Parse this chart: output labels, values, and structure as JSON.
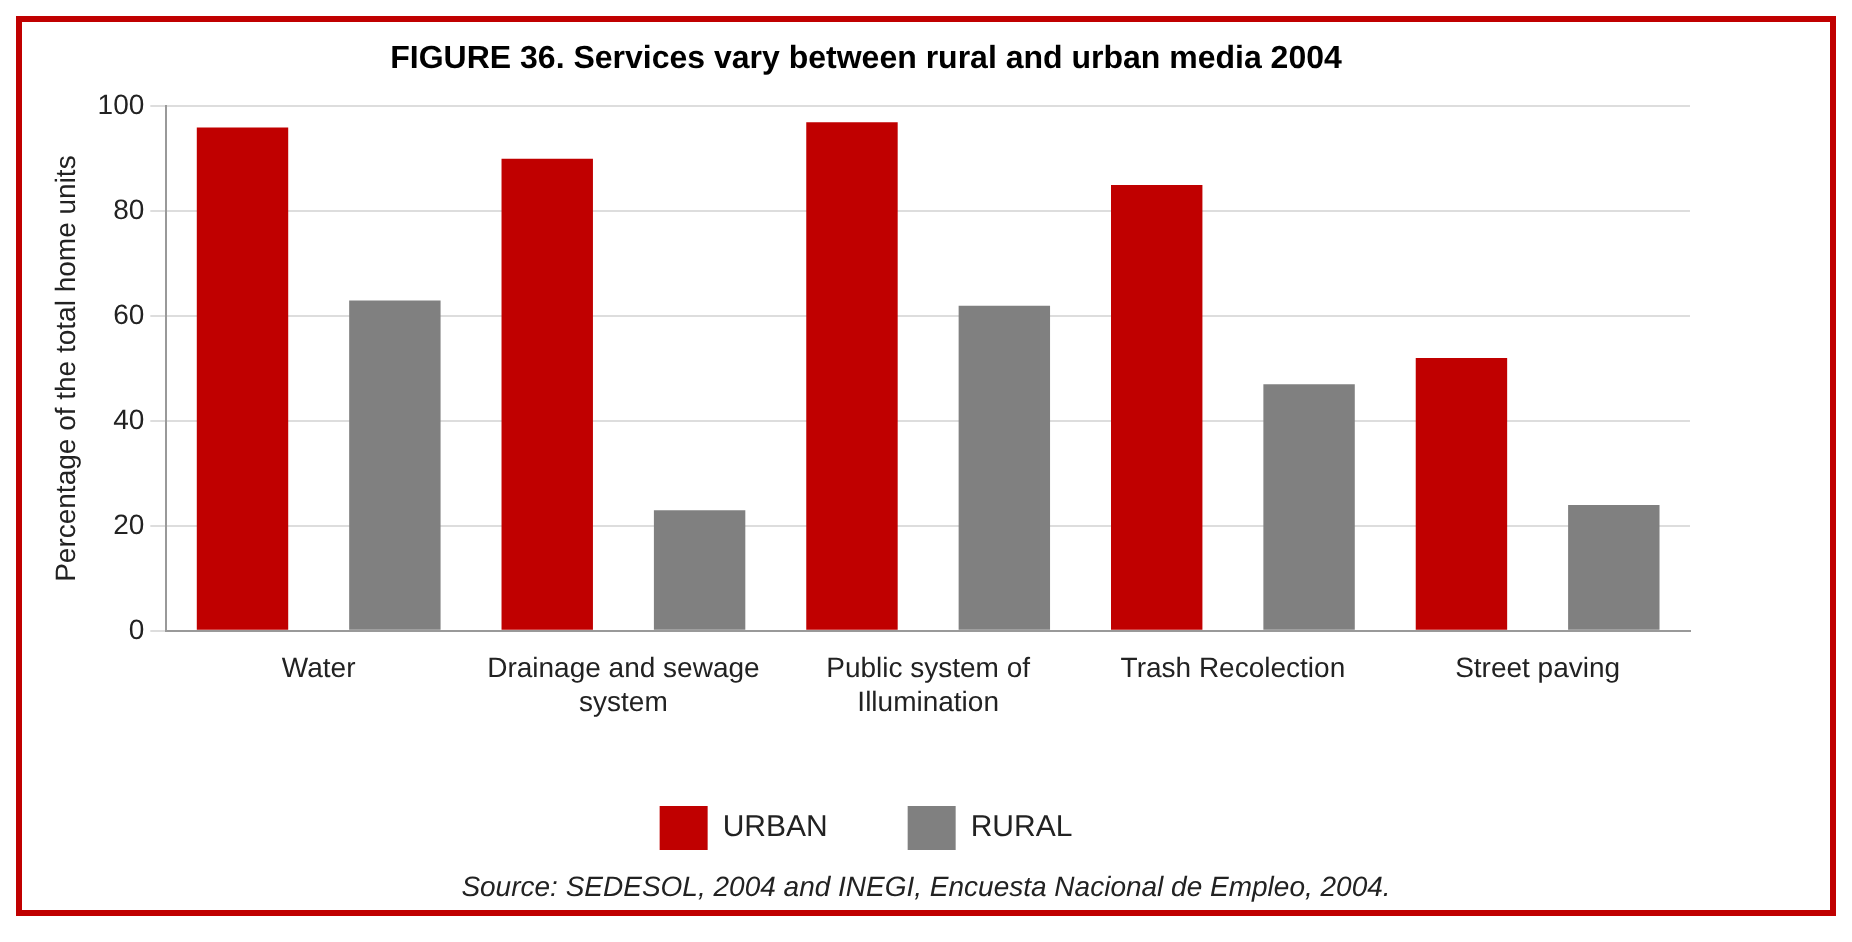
{
  "chart_data": {
    "type": "bar",
    "title": "FIGURE 36. Services vary between rural and urban media 2004",
    "ylabel": "Percentage of the total home units",
    "categories": [
      "Water",
      "Drainage and sewage system",
      "Public system of Illumination",
      "Trash Recolection",
      "Street paving"
    ],
    "series": [
      {
        "name": "URBAN",
        "color": "#c00000",
        "values": [
          96,
          90,
          97,
          85,
          52
        ]
      },
      {
        "name": "RURAL",
        "color": "#808080",
        "values": [
          63,
          23,
          62,
          47,
          24
        ]
      }
    ],
    "ylim": [
      0,
      100
    ],
    "yticks": [
      0,
      20,
      40,
      60,
      80,
      100
    ],
    "grid": "y",
    "legend": "bottom",
    "annotations": [
      "Source: SEDESOL, 2004 and INEGI, Encuesta Nacional de Empleo, 2004."
    ]
  }
}
